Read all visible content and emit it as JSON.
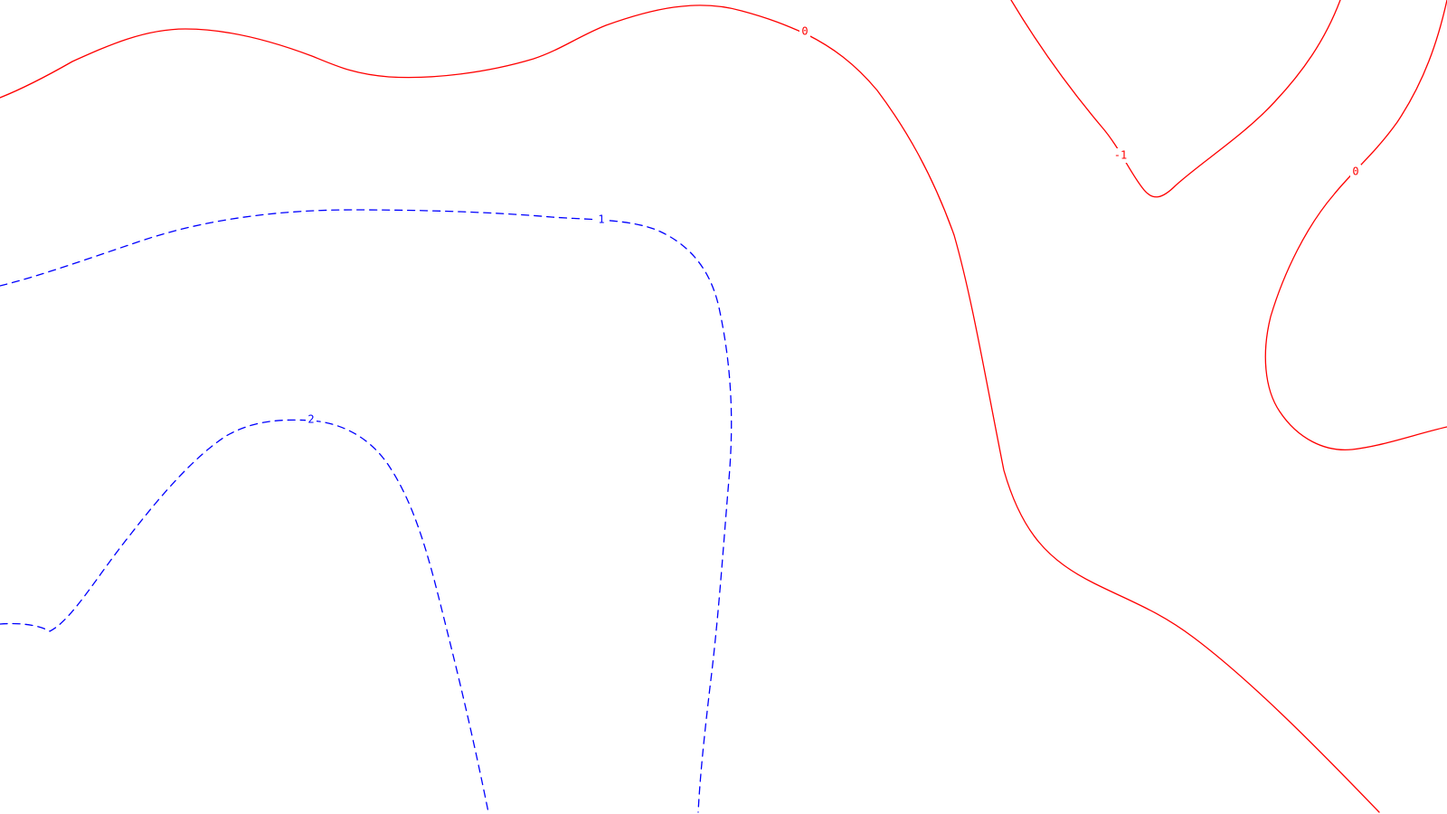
{
  "map": {
    "colors": {
      "positive": "#ff0000",
      "negative": "#0000ff",
      "background": "#ffffff"
    },
    "contours": [
      {
        "id": "contour-0-north",
        "level": "0",
        "label": "0",
        "kind": "positive"
      },
      {
        "id": "contour-0-east",
        "level": "0",
        "label": "0",
        "kind": "positive"
      },
      {
        "id": "contour-neg1-northeast",
        "level": "-1",
        "label": "-1",
        "kind": "positive"
      },
      {
        "id": "contour-1-center",
        "level": "1",
        "label": "1",
        "kind": "negative"
      },
      {
        "id": "contour-2-southwest",
        "level": "2",
        "label": "2",
        "kind": "negative"
      }
    ]
  }
}
